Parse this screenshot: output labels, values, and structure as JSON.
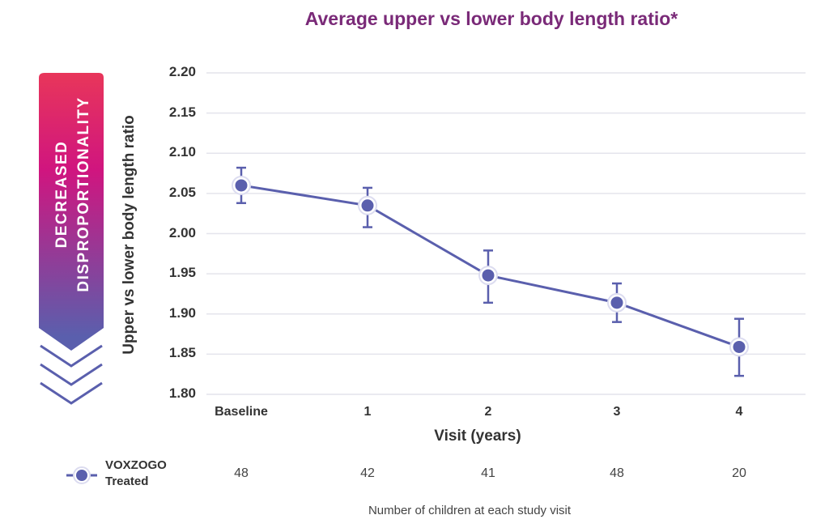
{
  "chart_data": {
    "type": "line",
    "title": "Average upper vs lower body length ratio*",
    "xlabel": "Visit (years)",
    "ylabel": "Upper vs lower body length ratio",
    "categories": [
      "Baseline",
      "1",
      "2",
      "3",
      "4"
    ],
    "ylim": [
      1.8,
      2.2
    ],
    "yticks": [
      "2.20",
      "2.15",
      "2.10",
      "2.05",
      "2.00",
      "1.95",
      "1.90",
      "1.85",
      "1.80"
    ],
    "grid": true,
    "series": [
      {
        "name": "VOXZOGO Treated",
        "values": [
          2.06,
          2.035,
          1.948,
          1.914,
          1.859
        ],
        "error_low": [
          2.038,
          2.008,
          1.914,
          1.89,
          1.823
        ],
        "error_high": [
          2.082,
          2.057,
          1.979,
          1.938,
          1.894
        ],
        "color": "#5a5fad"
      }
    ],
    "counts_label": "Number of children at each study visit",
    "counts": [
      "48",
      "42",
      "41",
      "48",
      "20"
    ]
  },
  "legend": {
    "line1": "VOXZOGO",
    "line2": "Treated"
  },
  "side_arrow": {
    "line1": "DECREASED",
    "line2": "DISPROPORTIONALITY",
    "gradient_top": "#e8365a",
    "gradient_mid": "#d0157f",
    "gradient_bottom": "#5a5fad"
  }
}
